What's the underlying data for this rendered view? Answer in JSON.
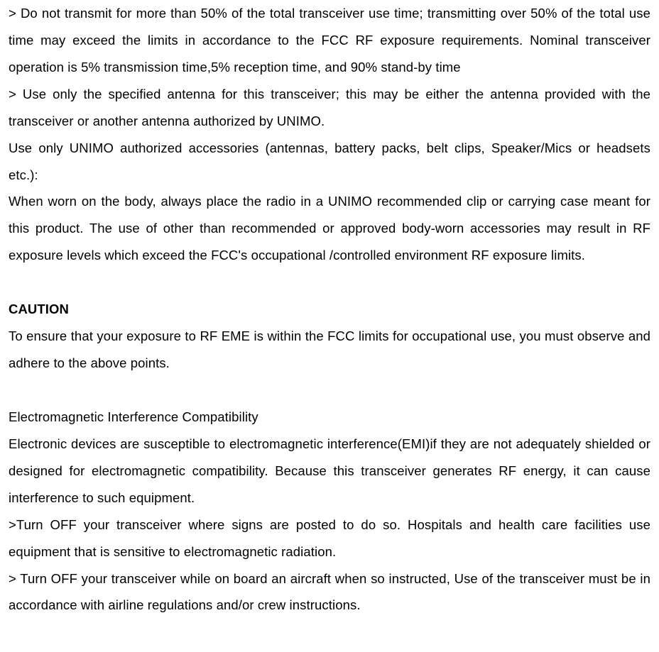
{
  "doc": {
    "p1": ">  Do not transmit for more than 50% of the total transceiver use time; transmitting over 50% of the total use time may exceed the limits in accordance to the FCC RF exposure requirements. Nominal transceiver operation is 5% transmission time,5% reception time, and 90% stand-by time",
    "p2": "> Use only the specified antenna for this transceiver; this may be either the antenna provided with the transceiver or another antenna authorized by UNIMO.",
    "p3": "Use only UNIMO authorized accessories (antennas, battery packs, belt clips, Speaker/Mics or headsets etc.):",
    "p4": "When worn on the body, always place the radio in a UNIMO recommended clip or carrying case meant for this product. The use of other than recommended or approved body-worn accessories may result in RF exposure levels which exceed  the FCC's occupational /controlled environment RF exposure limits.",
    "h_caution": "CAUTION",
    "p5": "To ensure that your exposure to RF EME is within the FCC limits for occupational use, you must observe and adhere to the above points.",
    "h_emic": "Electromagnetic Interference Compatibility",
    "p6": "Electronic devices are susceptible to electromagnetic interference(EMI)if they are not adequately shielded or designed for electromagnetic compatibility. Because this transceiver generates RF energy, it can cause interference to such equipment.",
    "p7": ">Turn OFF your transceiver where signs are posted to do so. Hospitals and health care facilities use equipment that is sensitive to electromagnetic radiation.",
    "p8": "> Turn OFF your transceiver while on board an aircraft when so instructed, Use of the transceiver must be in accordance with airline regulations and/or crew instructions.",
    "colors": {
      "text": "#000000",
      "background": "#ffffff"
    },
    "typography": {
      "font_family": "Arial / sans-serif",
      "body_fontsize_pt": 14,
      "line_height": 2.05,
      "text_align": "justify",
      "heading_weight": 700
    }
  }
}
